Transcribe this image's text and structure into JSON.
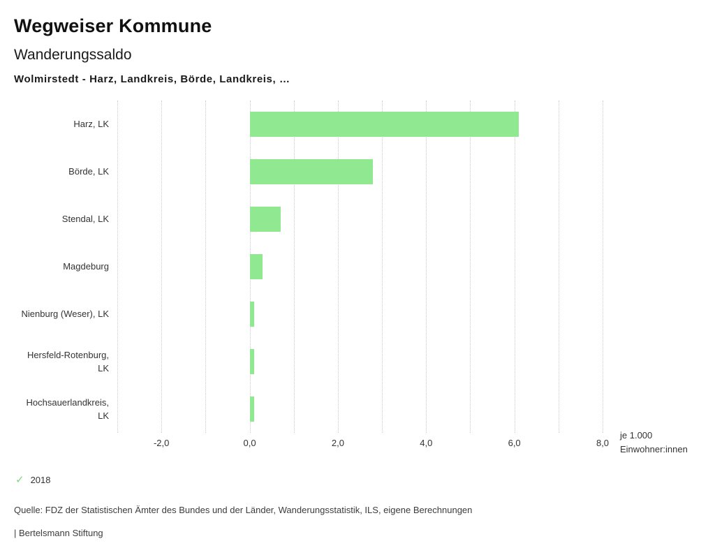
{
  "header": {
    "title": "Wegweiser Kommune",
    "subtitle": "Wanderungssaldo",
    "description": "Wolmirstedt - Harz, Landkreis, Börde, Landkreis, …"
  },
  "chart_data": {
    "type": "bar",
    "orientation": "horizontal",
    "title": "Wanderungssaldo",
    "categories": [
      "Harz, LK",
      "Börde, LK",
      "Stendal, LK",
      "Magdeburg",
      "Nienburg (Weser), LK",
      "Hersfeld-Rotenburg, LK",
      "Hochsauerlandkreis, LK"
    ],
    "series": [
      {
        "name": "2018",
        "values": [
          6.1,
          2.8,
          0.7,
          0.3,
          0.1,
          0.1,
          0.1
        ]
      }
    ],
    "xlim": [
      -3,
      8
    ],
    "grid_step": 1,
    "xticks": [
      -2,
      0,
      2,
      4,
      6,
      8
    ],
    "xtick_labels": [
      "-2,0",
      "0,0",
      "2,0",
      "4,0",
      "6,0",
      "8,0"
    ],
    "xlabel_line1": "je 1.000",
    "xlabel_line2": "Einwohner:innen",
    "bar_color": "#90e890",
    "grid": "dotted-vertical",
    "legend_position": "bottom-left"
  },
  "legend": {
    "items": [
      {
        "label": "2018",
        "marker": "check",
        "marker_glyph": "✓",
        "color": "#7fd67f"
      }
    ]
  },
  "footer": {
    "source": "Quelle: FDZ der Statistischen Ämter des Bundes und der Länder, Wanderungsstatistik, ILS, eigene Berechnungen",
    "attribution": "| Bertelsmann Stiftung"
  }
}
